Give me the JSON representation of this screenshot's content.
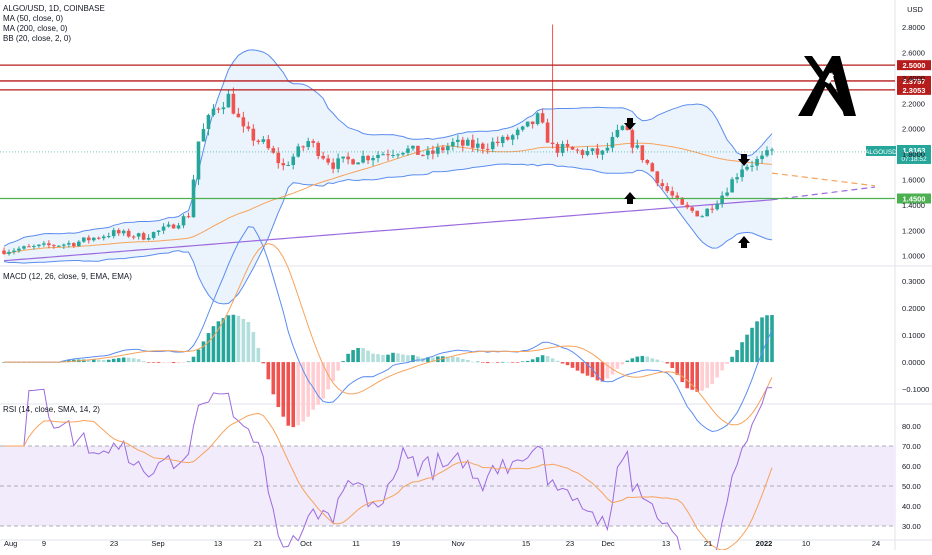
{
  "header": {
    "symbol_line": "ALGO/USD, 1D, COINBASE",
    "indicators": [
      "MA (50, close, 0)",
      "MA (200, close, 0)",
      "BB (20, close, 2, 0)"
    ],
    "currency": "USD"
  },
  "macd_label": "MACD (12, 26, close, 9, EMA, EMA)",
  "rsi_label": "RSI (14, close, SMA, 14, 2)",
  "colors": {
    "up": "#26a69a",
    "down": "#ef5350",
    "ma50": "#f7a35c",
    "ma200": "#9c6ade",
    "bb": "#5b8def",
    "bb_fill": "#e3eefb",
    "level": "#b71c1c",
    "support": "#4caf50",
    "rsi_band": "#f1ebfb"
  },
  "chart_data": [
    {
      "type": "candlestick",
      "title": "ALGO/USD, 1D, COINBASE",
      "ylim": [
        0.95,
        2.95
      ],
      "y_ticks": [
        "2.8000",
        "2.6000",
        "2.4000",
        "2.2000",
        "2.0000",
        "1.8000",
        "1.6000",
        "1.4000",
        "1.2000",
        "1.0000"
      ],
      "x_ticks": [
        "Aug",
        "9",
        "23",
        "Sep",
        "13",
        "21",
        "Oct",
        "11",
        "19",
        "Nov",
        "15",
        "23",
        "Dec",
        "13",
        "21",
        "2022",
        "10",
        "24"
      ],
      "current_price": {
        "label": "ALGOUSD",
        "value": "1.8163",
        "countdown": "07:18:52"
      },
      "resistance_levels": [
        {
          "value": 2.5,
          "label": "2.5000"
        },
        {
          "value": 2.3757,
          "label": "2.3757"
        },
        {
          "value": 2.3053,
          "label": "2.3053"
        }
      ],
      "support_level": {
        "value": 1.45,
        "label": "1.4500"
      },
      "ma50_end": 1.65,
      "ma200_end": 1.44,
      "bb_upper_end": 1.79,
      "bb_lower_end": 1.22
    },
    {
      "type": "bar",
      "title": "MACD (12, 26, close, 9, EMA, EMA)",
      "ylim": [
        -0.14,
        0.34
      ],
      "y_ticks": [
        "0.3000",
        "0.2000",
        "0.1000",
        "0.0000",
        "−0.1000"
      ]
    },
    {
      "type": "line",
      "title": "RSI (14, close, SMA, 14, 2)",
      "ylim": [
        25,
        88
      ],
      "y_ticks": [
        "80.00",
        "70.00",
        "60.00",
        "50.00",
        "40.00",
        "30.00"
      ],
      "bands": [
        30,
        70
      ]
    }
  ]
}
